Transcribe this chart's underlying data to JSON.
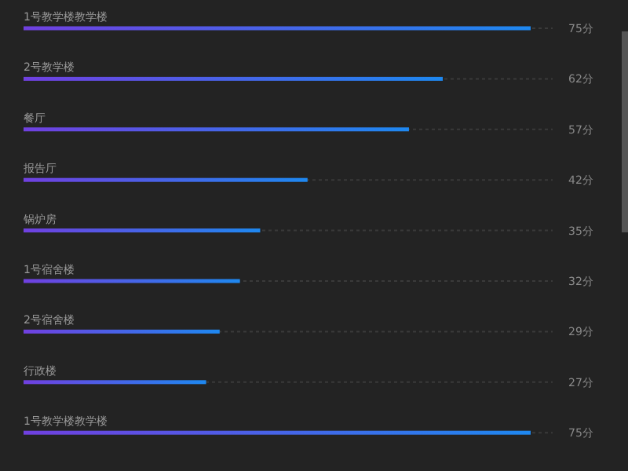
{
  "chart_data": {
    "type": "bar",
    "orientation": "horizontal",
    "categories": [
      "1号教学楼教学楼",
      "2号教学楼",
      "餐厅",
      "报告厅",
      "锅炉房",
      "1号宿舍楼",
      "2号宿舍楼",
      "行政楼",
      "1号教学楼教学楼"
    ],
    "series": [
      {
        "color": "#1e88f0",
        "values": [
          75,
          62,
          57,
          42,
          35,
          32,
          29,
          27,
          75
        ],
        "value_labels": [
          "75分",
          "62分",
          "57分",
          "42分",
          "35分",
          "32分",
          "29分",
          "27分",
          "75分"
        ]
      }
    ]
  }
}
